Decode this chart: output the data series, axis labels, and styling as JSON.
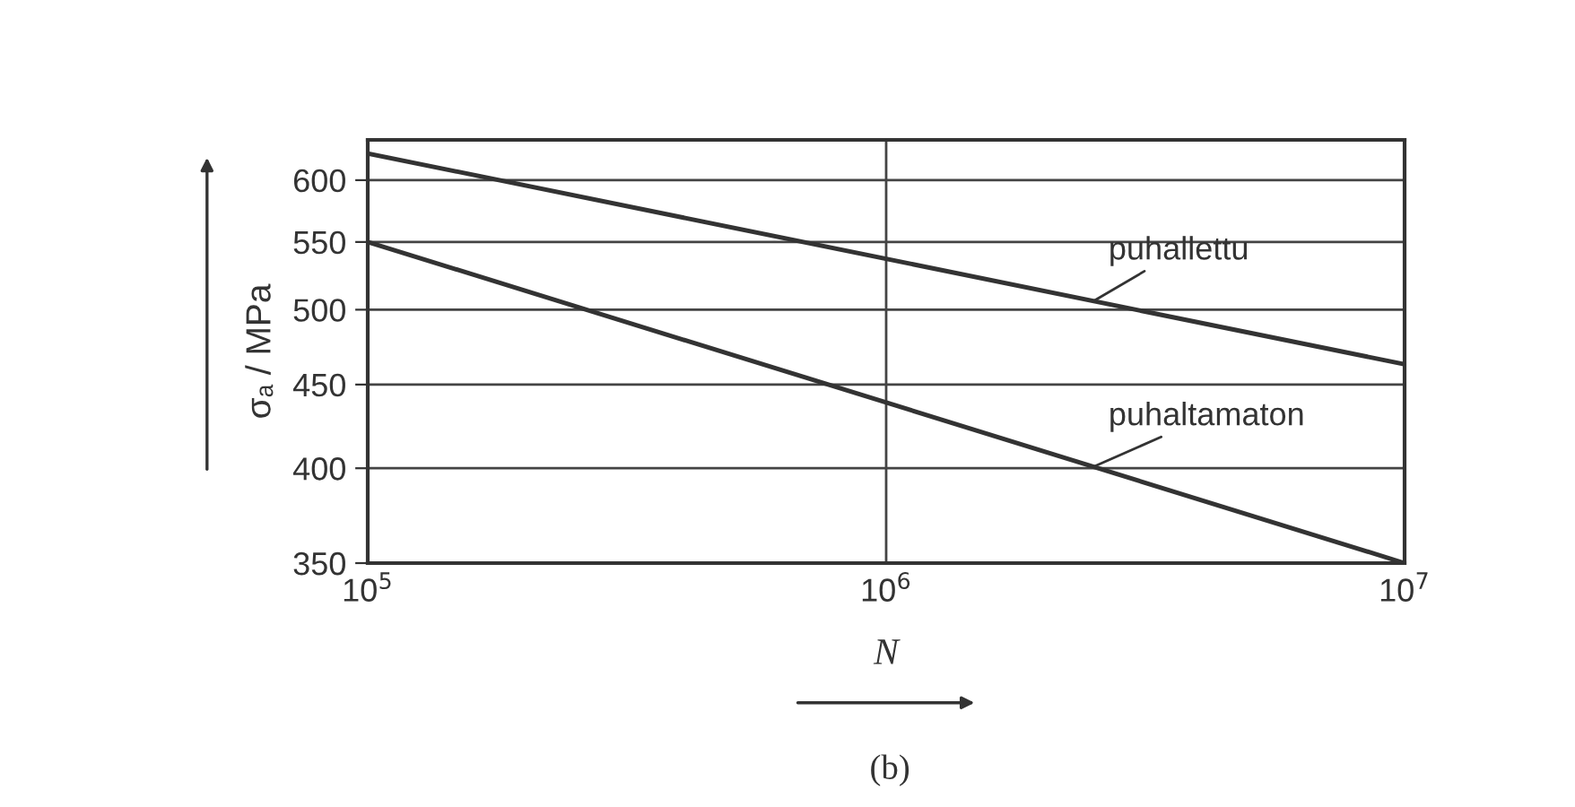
{
  "chart_data": {
    "type": "line",
    "log": "xy",
    "x": [
      100000,
      10000000
    ],
    "series": [
      {
        "name": "puhallettu",
        "color": "#333333",
        "values": [
          623,
          463
        ]
      },
      {
        "name": "puhaltamaton",
        "color": "#333333",
        "values": [
          550,
          350
        ]
      }
    ],
    "xlim": [
      100000,
      10000000
    ],
    "xticks": [
      {
        "value": 100000,
        "label": "10$^{5}$"
      },
      {
        "value": 1000000,
        "label": "10$^{6}$"
      },
      {
        "value": 10000000,
        "label": "10$^{7}$"
      }
    ],
    "ylim": [
      350,
      635
    ],
    "yticks": [
      350,
      400,
      450,
      500,
      550,
      600
    ],
    "ylabel": "σₐ / MPa",
    "xlabel": "N",
    "grid": true,
    "line_style": "solid",
    "marker": "none",
    "annotations": [
      "(b)"
    ]
  }
}
